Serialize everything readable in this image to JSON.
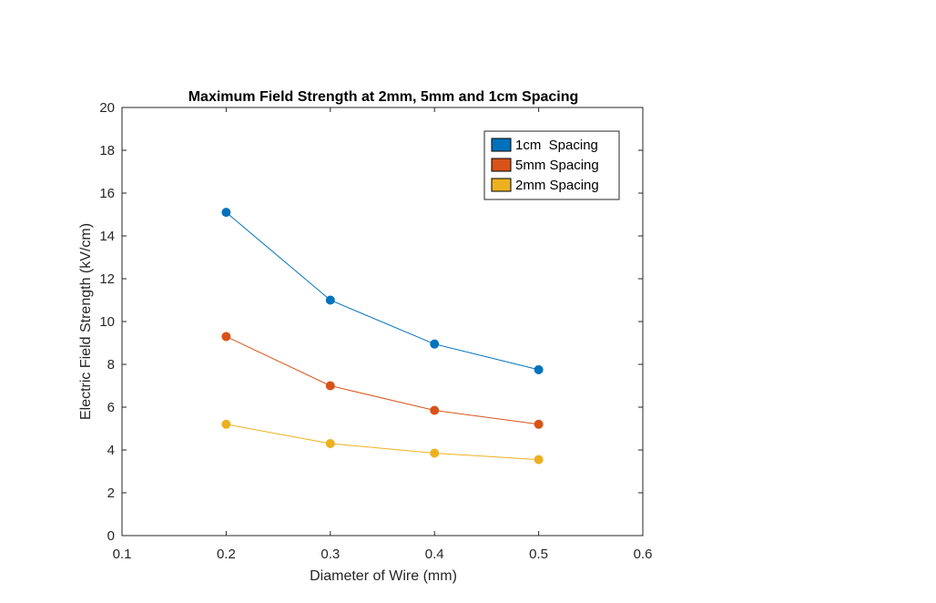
{
  "chart_data": {
    "type": "line",
    "title": "Maximum Field Strength at 2mm, 5mm and 1cm Spacing",
    "xlabel": "Diameter of Wire (mm)",
    "ylabel": "Electric Field Strength (kV/cm)",
    "xlim": [
      0.1,
      0.6
    ],
    "ylim": [
      0,
      20
    ],
    "xticks": [
      0.1,
      0.2,
      0.3,
      0.4,
      0.5,
      0.6
    ],
    "xtick_labels": [
      "0.1",
      "0.2",
      "0.3",
      "0.4",
      "0.5",
      "0.6"
    ],
    "yticks": [
      0,
      2,
      4,
      6,
      8,
      10,
      12,
      14,
      16,
      18,
      20
    ],
    "ytick_labels": [
      "0",
      "2",
      "4",
      "6",
      "8",
      "10",
      "12",
      "14",
      "16",
      "18",
      "20"
    ],
    "grid": false,
    "legend_position": "top-right",
    "x": [
      0.2,
      0.3,
      0.4,
      0.5
    ],
    "series": [
      {
        "name": "1cm  Spacing",
        "color": "#0072BD",
        "values": [
          15.1,
          11.0,
          8.95,
          7.75
        ]
      },
      {
        "name": "5mm Spacing",
        "color": "#D95319",
        "values": [
          9.3,
          7.0,
          5.85,
          5.2
        ]
      },
      {
        "name": "2mm Spacing",
        "color": "#EDB120",
        "values": [
          5.2,
          4.3,
          3.85,
          3.55
        ]
      }
    ]
  }
}
